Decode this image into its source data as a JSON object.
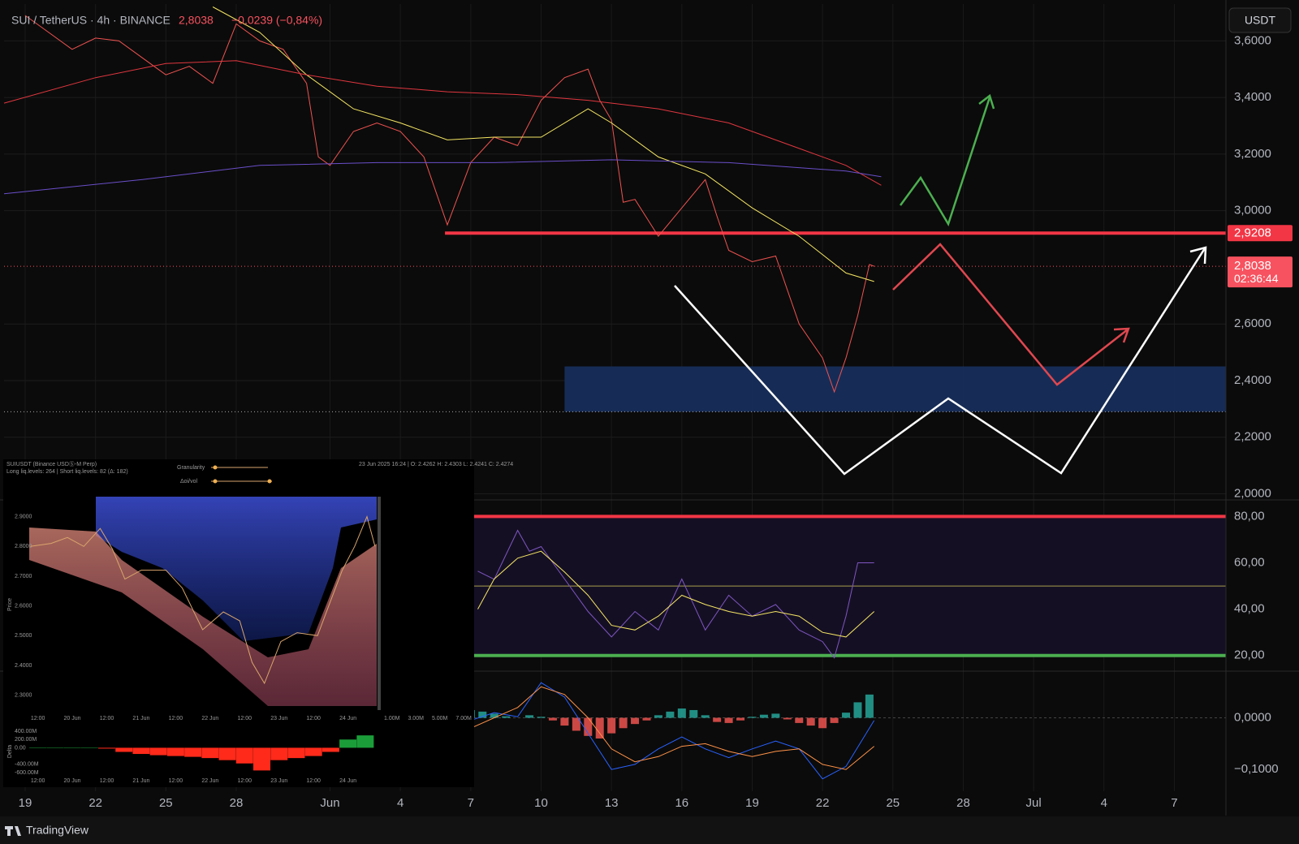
{
  "header": {
    "symbol": "SUI / TetherUS · 4h · BINANCE",
    "price": "2,8038",
    "change": "−0,0239 (−0,84%)"
  },
  "currency_button": "USDT",
  "footer": "TradingView",
  "chart_data": [
    {
      "type": "line",
      "xlim": [
        -0.9,
        51.2
      ],
      "xticks": [
        {
          "value": 0,
          "label": "19"
        },
        {
          "value": 3,
          "label": "22"
        },
        {
          "value": 6,
          "label": "25"
        },
        {
          "value": 9,
          "label": "28"
        },
        {
          "value": 13,
          "label": "Jun"
        },
        {
          "value": 16,
          "label": "4"
        },
        {
          "value": 19,
          "label": "7"
        },
        {
          "value": 22,
          "label": "10"
        },
        {
          "value": 25,
          "label": "13"
        },
        {
          "value": 28,
          "label": "16"
        },
        {
          "value": 31,
          "label": "19"
        },
        {
          "value": 34,
          "label": "22"
        },
        {
          "value": 37,
          "label": "25"
        },
        {
          "value": 40,
          "label": "28"
        },
        {
          "value": 43,
          "label": "Jul"
        },
        {
          "value": 46,
          "label": "4"
        },
        {
          "value": 49,
          "label": "7"
        }
      ],
      "ylim": [
        1.99,
        3.73
      ],
      "yticks": [
        {
          "value": 3.6,
          "label": "3,6000"
        },
        {
          "value": 3.4,
          "label": "3,4000"
        },
        {
          "value": 3.2,
          "label": "3,2000"
        },
        {
          "value": 3.0,
          "label": "3,0000"
        },
        {
          "value": 2.6,
          "label": "2,6000"
        },
        {
          "value": 2.4,
          "label": "2,4000"
        },
        {
          "value": 2.2,
          "label": "2,2000"
        },
        {
          "value": 2.0,
          "label": "2,0000"
        }
      ],
      "grid": true,
      "series": [
        {
          "color": "#ef5350",
          "x": [
            0,
            1,
            2,
            3,
            4,
            5,
            6,
            7,
            8,
            9,
            10,
            11,
            12,
            12.5,
            13,
            14,
            15,
            16,
            17,
            18,
            19,
            20,
            21,
            22,
            23,
            24,
            24.5,
            25,
            25.5,
            26,
            27,
            28,
            29,
            29.5,
            30,
            31,
            32,
            32.5,
            33,
            34,
            34.5,
            35,
            35.5,
            36,
            36.2
          ],
          "values": [
            3.69,
            3.63,
            3.57,
            3.61,
            3.6,
            3.54,
            3.48,
            3.51,
            3.45,
            3.66,
            3.6,
            3.57,
            3.45,
            3.19,
            3.16,
            3.28,
            3.31,
            3.28,
            3.19,
            2.95,
            3.17,
            3.26,
            3.23,
            3.39,
            3.47,
            3.5,
            3.39,
            3.32,
            3.03,
            3.04,
            2.91,
            3.01,
            3.11,
            2.98,
            2.86,
            2.82,
            2.84,
            2.72,
            2.6,
            2.48,
            2.36,
            2.48,
            2.63,
            2.81,
            2.8038
          ]
        },
        {
          "color": "#f5e663",
          "x": [
            8,
            10,
            12,
            14,
            16,
            18,
            20,
            22,
            24,
            25,
            27,
            29,
            31,
            33,
            35,
            36.2
          ],
          "values": [
            3.72,
            3.63,
            3.48,
            3.36,
            3.31,
            3.25,
            3.26,
            3.26,
            3.36,
            3.31,
            3.19,
            3.13,
            3.01,
            2.91,
            2.78,
            2.75
          ]
        },
        {
          "color": "#e0373f",
          "x": [
            -0.9,
            3,
            6,
            9,
            12,
            15,
            18,
            21,
            24,
            27,
            30,
            33,
            35,
            36.5
          ],
          "values": [
            3.38,
            3.47,
            3.52,
            3.53,
            3.48,
            3.44,
            3.42,
            3.41,
            3.39,
            3.36,
            3.31,
            3.22,
            3.16,
            3.09
          ]
        },
        {
          "color": "#6a4fc9",
          "x": [
            -0.9,
            5,
            10,
            15,
            20,
            25,
            30,
            35,
            36.5
          ],
          "values": [
            3.06,
            3.11,
            3.16,
            3.17,
            3.17,
            3.18,
            3.17,
            3.14,
            3.12
          ]
        }
      ],
      "price_level": {
        "value": 2.9208,
        "label": "2,9208",
        "from_x": 17.9,
        "color": "#f23645"
      },
      "last_price": {
        "value": 2.8038,
        "label": "2,8038",
        "countdown": "02:36:44",
        "color": "#f7525f"
      },
      "zone": {
        "from_x": 23.0,
        "y": [
          2.29,
          2.45
        ],
        "color": "#17305e"
      }
    },
    {
      "type": "line",
      "ylim": [
        13.6,
        86.8
      ],
      "yticks": [
        {
          "value": 80,
          "label": "80,00"
        },
        {
          "value": 60,
          "label": "60,00"
        },
        {
          "value": 40,
          "label": "40,00"
        },
        {
          "value": 20,
          "label": "20,00"
        }
      ],
      "bands": [
        {
          "value": 80,
          "color": "#f23645"
        },
        {
          "value": 20,
          "color": "#4caf50"
        }
      ],
      "midline": 50,
      "series": [
        {
          "color": "#7e57c2",
          "x": [
            19.3,
            20,
            21,
            21.5,
            22,
            23,
            24,
            25,
            26,
            27,
            28,
            28.5,
            29,
            30,
            31,
            32,
            33,
            34,
            34.5,
            35,
            35.5,
            36.2
          ],
          "values": [
            56.4,
            52.9,
            74,
            65,
            67,
            53,
            39,
            28,
            39,
            31,
            53,
            42,
            31,
            46,
            37,
            42,
            31,
            26,
            19,
            37,
            60,
            60
          ]
        },
        {
          "color": "#f5e663",
          "x": [
            19.3,
            20,
            21,
            22,
            23,
            24,
            25,
            26,
            27,
            28,
            29,
            30,
            31,
            32,
            33,
            34,
            35,
            36.2
          ],
          "values": [
            40,
            53,
            62,
            65,
            56,
            46,
            33,
            31,
            37,
            46,
            42,
            39,
            37,
            39,
            37,
            30,
            28,
            39
          ]
        }
      ]
    },
    {
      "type": "macd",
      "ylim": [
        -0.142,
        0.0887
      ],
      "yticks": [
        {
          "value": 0,
          "label": "0,0000"
        },
        {
          "value": -0.1,
          "label": "−0,1000"
        }
      ],
      "histogram": {
        "x": [
          19,
          19.5,
          20,
          20.5,
          21,
          21.5,
          22,
          22.5,
          23,
          23.5,
          24,
          24.5,
          25,
          25.5,
          26,
          26.5,
          27,
          27.5,
          28,
          28.5,
          29,
          29.5,
          30,
          30.5,
          31,
          31.5,
          32,
          32.5,
          33,
          33.5,
          34,
          34.5,
          35,
          35.5,
          36
        ],
        "values": [
          0.015,
          0.012,
          0.008,
          0.003,
          0,
          0.005,
          0.002,
          -0.005,
          -0.015,
          -0.025,
          -0.035,
          -0.04,
          -0.03,
          -0.02,
          -0.012,
          -0.005,
          0.005,
          0.012,
          0.018,
          0.015,
          0.005,
          -0.008,
          -0.01,
          -0.005,
          0.002,
          0.006,
          0.008,
          -0.003,
          -0.01,
          -0.015,
          -0.02,
          -0.01,
          0.01,
          0.03,
          0.045
        ],
        "up_color": "#26a69a",
        "down_color": "#ef5350"
      },
      "series": [
        {
          "color": "#2962ff",
          "x": [
            19,
            20,
            21,
            22,
            23,
            24,
            25,
            26,
            27,
            28,
            29,
            30,
            31,
            32,
            33,
            34,
            35,
            36.2
          ],
          "values": [
            -0.005,
            0.01,
            0.002,
            0.068,
            0.04,
            -0.03,
            -0.1,
            -0.09,
            -0.06,
            -0.037,
            -0.06,
            -0.077,
            -0.06,
            -0.045,
            -0.06,
            -0.118,
            -0.094,
            -0.005
          ]
        },
        {
          "color": "#ff9248",
          "x": [
            19,
            20,
            21,
            22,
            23,
            24,
            25,
            26,
            27,
            28,
            29,
            30,
            31,
            32,
            33,
            34,
            35,
            36.2
          ],
          "values": [
            -0.02,
            0,
            0.02,
            0.06,
            0.045,
            0,
            -0.06,
            -0.085,
            -0.075,
            -0.055,
            -0.05,
            -0.065,
            -0.075,
            -0.065,
            -0.06,
            -0.09,
            -0.1,
            -0.055
          ]
        }
      ]
    },
    {
      "type": "line",
      "title": "SUIUSDT (Binance USDⓈ-M Perp)",
      "subtitle": "Long liq.levels: 264 | Short liq.levels: 82 (Δ: 182)",
      "info": "23 Jun 2025 16:24 | O: 2.4262 H: 2.4303 L: 2.4241 C: 2.4274",
      "controls": [
        "Granularity",
        "Δoi/vol"
      ],
      "ylabel": "Price",
      "xlim": [
        -3,
        118
      ],
      "xticks": [
        {
          "value": 0,
          "label": "12:00"
        },
        {
          "value": 12,
          "label": "20 Jun"
        },
        {
          "value": 24,
          "label": "12:00"
        },
        {
          "value": 36,
          "label": "21 Jun"
        },
        {
          "value": 48,
          "label": "12:00"
        },
        {
          "value": 60,
          "label": "22 Jun"
        },
        {
          "value": 72,
          "label": "12:00"
        },
        {
          "value": 84,
          "label": "23 Jun"
        },
        {
          "value": 96,
          "label": "12:00"
        },
        {
          "value": 108,
          "label": "24 Jun"
        }
      ],
      "ylim": [
        2.25,
        2.967
      ],
      "yticks": [
        {
          "value": 2.9,
          "label": "2.9000"
        },
        {
          "value": 2.8,
          "label": "2.8000"
        },
        {
          "value": 2.7,
          "label": "2.7000"
        },
        {
          "value": 2.6,
          "label": "2.6000"
        },
        {
          "value": 2.5,
          "label": "2.5000"
        },
        {
          "value": 2.4,
          "label": "2.4000"
        },
        {
          "value": 2.3,
          "label": "2.3000"
        }
      ],
      "series": [
        {
          "color": "#d9a56b",
          "x": [
            -2.6,
            4.6,
            10.3,
            16,
            21.7,
            26,
            30.3,
            36,
            44.6,
            50.3,
            57.4,
            64.6,
            70.3,
            74.6,
            78.9,
            84.6,
            90.3,
            97.4,
            101.7,
            106,
            110.3,
            114.6,
            117.4
          ],
          "values": [
            2.8,
            2.81,
            2.83,
            2.8,
            2.86,
            2.79,
            2.69,
            2.72,
            2.72,
            2.66,
            2.52,
            2.58,
            2.55,
            2.41,
            2.34,
            2.48,
            2.51,
            2.5,
            2.61,
            2.72,
            2.8,
            2.9,
            2.8
          ]
        }
      ],
      "liq_xlim": [
        0,
        7600000
      ],
      "liq_xticks": [
        {
          "value": 1000000,
          "label": "1.00M"
        },
        {
          "value": 3000000,
          "label": "3.00M"
        },
        {
          "value": 5000000,
          "label": "5.00M"
        },
        {
          "value": 7000000,
          "label": "7.00M"
        }
      ]
    },
    {
      "type": "bar",
      "ylabel": "Delta",
      "xlim": [
        -3,
        118
      ],
      "xticks": [
        {
          "value": 0,
          "label": "12:00"
        },
        {
          "value": 12,
          "label": "20 Jun"
        },
        {
          "value": 24,
          "label": "12:00"
        },
        {
          "value": 36,
          "label": "21 Jun"
        },
        {
          "value": 48,
          "label": "12:00"
        },
        {
          "value": 60,
          "label": "22 Jun"
        },
        {
          "value": 72,
          "label": "12:00"
        },
        {
          "value": 84,
          "label": "23 Jun"
        },
        {
          "value": 96,
          "label": "12:00"
        },
        {
          "value": 108,
          "label": "24 Jun"
        }
      ],
      "ylim": [
        -700000000,
        500000000
      ],
      "yticks": [
        {
          "value": 400000000,
          "label": "400.00M"
        },
        {
          "value": 200000000,
          "label": "200.00M"
        },
        {
          "value": 0,
          "label": "0.00"
        },
        {
          "value": -400000000,
          "label": "-400.00M"
        },
        {
          "value": -600000000,
          "label": "-600.00M"
        }
      ],
      "x": [
        0,
        6,
        12,
        18,
        24,
        30,
        36,
        42,
        48,
        54,
        60,
        66,
        72,
        78,
        84,
        90,
        96,
        102,
        108,
        114
      ],
      "values": [
        0,
        0,
        0,
        0,
        -20000000,
        -100000000,
        -150000000,
        -180000000,
        -200000000,
        -220000000,
        -250000000,
        -300000000,
        -380000000,
        -550000000,
        -300000000,
        -250000000,
        -200000000,
        -100000000,
        200000000,
        300000000
      ],
      "up_color": "#1b9e3a",
      "down_color": "#ff2a1a"
    }
  ]
}
